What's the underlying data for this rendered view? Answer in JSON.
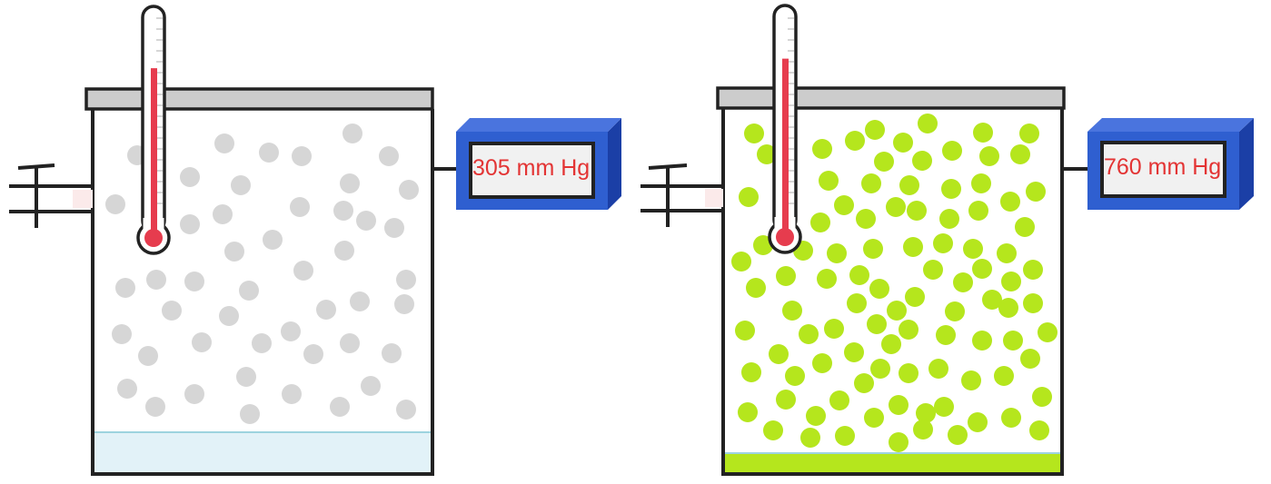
{
  "colors": {
    "outline": "#222222",
    "lid": "#cccccc",
    "gauge_body": "#2f5fd0",
    "gauge_dark": "#1b3fa6",
    "gauge_screen": "#f1f1f1",
    "reading_text": "#e33434",
    "thermo_fill": "#e63c4e",
    "left_molecule": "#d6d6d6",
    "left_liquid": "#e2f2f8",
    "left_liquid_line": "#9dd3df",
    "right_molecule": "#b5e61d",
    "right_liquid": "#b5e61d",
    "right_liquid_line": "#9dd3df"
  },
  "containers": [
    {
      "id": "left",
      "pressure_reading": "305 mm Hg",
      "thermometer_level": 0.76,
      "molecule_color_key": "left_molecule",
      "liquid_level": "high"
    },
    {
      "id": "right",
      "pressure_reading": "760 mm Hg",
      "thermometer_level": 0.8,
      "molecule_color_key": "right_molecule",
      "liquid_level": "low"
    }
  ]
}
